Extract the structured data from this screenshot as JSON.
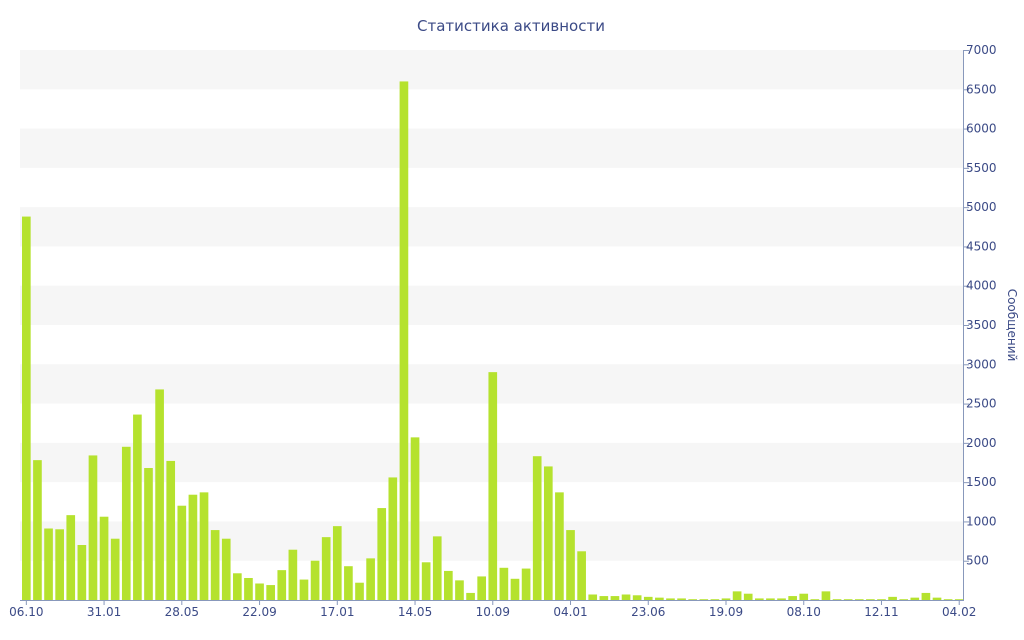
{
  "chart_data": {
    "type": "bar",
    "title": "Статистика активности",
    "xlabel": "",
    "ylabel": "Сообщений",
    "ylim": [
      0,
      7000
    ],
    "yticks": [
      500,
      1000,
      1500,
      2000,
      2500,
      3000,
      3500,
      4000,
      4500,
      5000,
      5500,
      6000,
      6500,
      7000
    ],
    "y_axis_side": "right",
    "grid": "alternating horizontal bands",
    "legend": "none",
    "bar_color": "#b5e22e",
    "x_tick_labels": [
      {
        "index": 0,
        "label": "06.10"
      },
      {
        "index": 7,
        "label": "31.01"
      },
      {
        "index": 14,
        "label": "28.05"
      },
      {
        "index": 21,
        "label": "22.09"
      },
      {
        "index": 28,
        "label": "17.01"
      },
      {
        "index": 35,
        "label": "14.05"
      },
      {
        "index": 42,
        "label": "10.09"
      },
      {
        "index": 49,
        "label": "04.01"
      },
      {
        "index": 56,
        "label": "23.06"
      },
      {
        "index": 63,
        "label": "19.09"
      },
      {
        "index": 70,
        "label": "08.10"
      },
      {
        "index": 77,
        "label": "12.11"
      },
      {
        "index": 84,
        "label": "04.02"
      }
    ],
    "values": [
      4880,
      1780,
      910,
      900,
      1080,
      700,
      1840,
      1060,
      780,
      1950,
      2360,
      1680,
      2680,
      1770,
      1200,
      1340,
      1370,
      890,
      780,
      340,
      280,
      210,
      190,
      380,
      640,
      260,
      500,
      800,
      940,
      430,
      220,
      530,
      1170,
      1560,
      6600,
      2070,
      480,
      810,
      370,
      250,
      90,
      300,
      2900,
      410,
      270,
      400,
      1830,
      1700,
      1370,
      890,
      620,
      70,
      50,
      50,
      70,
      60,
      40,
      30,
      20,
      20,
      10,
      10,
      10,
      20,
      110,
      80,
      20,
      20,
      20,
      50,
      80,
      10,
      110,
      10,
      10,
      10,
      10,
      10,
      40,
      10,
      30,
      90,
      30,
      10,
      10
    ]
  }
}
